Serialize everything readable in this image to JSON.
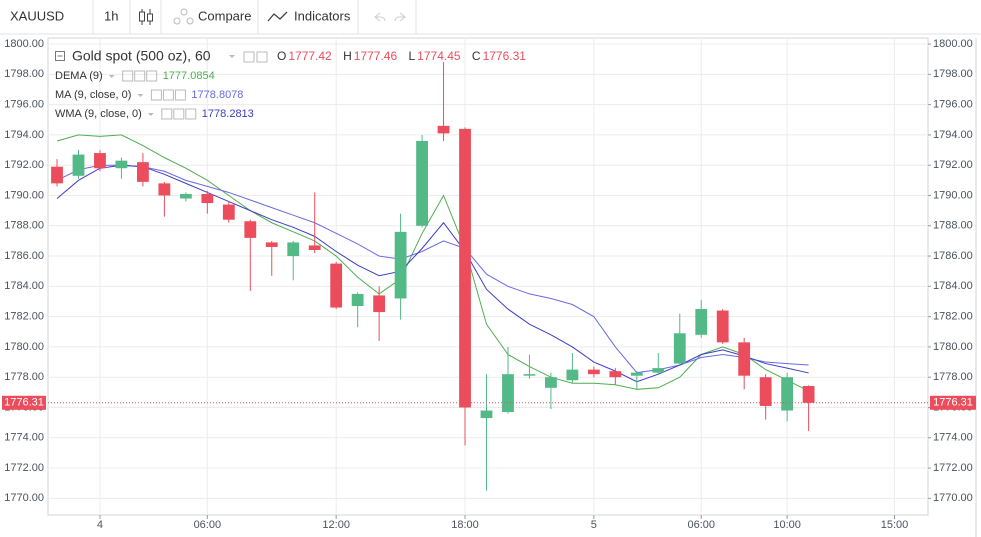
{
  "toolbar": {
    "symbol": "XAUUSD",
    "interval": "1h",
    "compare": "Compare",
    "indicators": "Indicators"
  },
  "chart_data": {
    "type": "candlestick",
    "title": "Gold spot (500 oz), 60",
    "ohlc_labels": {
      "open": "O",
      "high": "H",
      "low": "L",
      "close": "C"
    },
    "x": [
      0,
      1,
      2,
      3,
      4,
      5,
      6,
      7,
      8,
      9,
      10,
      11,
      12,
      13,
      14,
      15,
      16,
      17,
      18,
      19,
      20,
      21,
      22,
      23,
      24,
      25,
      26,
      27,
      28,
      29,
      30,
      31,
      32,
      33,
      34,
      35
    ],
    "xlim": [
      -0.42,
      40.56
    ],
    "xticks": [
      {
        "value": 2,
        "label": "4"
      },
      {
        "value": 7,
        "label": "06:00"
      },
      {
        "value": 13,
        "label": "12:00"
      },
      {
        "value": 19,
        "label": "18:00"
      },
      {
        "value": 25,
        "label": "5"
      },
      {
        "value": 30,
        "label": "06:00"
      },
      {
        "value": 34,
        "label": "10:00"
      },
      {
        "value": 39,
        "label": "15:00"
      }
    ],
    "ylim": [
      1768.9,
      1800.4
    ],
    "yticks": [
      {
        "value": 1770,
        "label": "1770.00"
      },
      {
        "value": 1772,
        "label": "1772.00"
      },
      {
        "value": 1774,
        "label": "1774.00"
      },
      {
        "value": 1776,
        "label": "1776.00"
      },
      {
        "value": 1778,
        "label": "1778.00"
      },
      {
        "value": 1780,
        "label": "1780.00"
      },
      {
        "value": 1782,
        "label": "1782.00"
      },
      {
        "value": 1784,
        "label": "1784.00"
      },
      {
        "value": 1786,
        "label": "1786.00"
      },
      {
        "value": 1788,
        "label": "1788.00"
      },
      {
        "value": 1790,
        "label": "1790.00"
      },
      {
        "value": 1792,
        "label": "1792.00"
      },
      {
        "value": 1794,
        "label": "1794.00"
      },
      {
        "value": 1796,
        "label": "1796.00"
      },
      {
        "value": 1798,
        "label": "1798.00"
      },
      {
        "value": 1800,
        "label": "1800.00"
      }
    ],
    "grid": true,
    "up_color": "#53b987",
    "down_color": "#eb4d5c",
    "open": [
      1791.9,
      1791.3,
      1792.8,
      1791.8,
      1792.2,
      1790.8,
      1789.8,
      1790.1,
      1789.4,
      1788.3,
      1786.9,
      1786.0,
      1786.7,
      1785.5,
      1782.7,
      1783.4,
      1783.2,
      1788.0,
      1794.6,
      1794.4,
      1775.3,
      1775.7,
      1778.1,
      1777.3,
      1777.8,
      1778.5,
      1778.4,
      1778.1,
      1778.3,
      1778.9,
      1780.8,
      1782.4,
      1780.3,
      1778.0,
      1775.8,
      1777.42
    ],
    "high": [
      1792.4,
      1793.0,
      1793.0,
      1792.5,
      1792.8,
      1790.9,
      1790.2,
      1790.3,
      1789.6,
      1788.4,
      1787.0,
      1787.0,
      1790.2,
      1785.6,
      1783.6,
      1784.0,
      1788.8,
      1794.0,
      1798.8,
      1794.5,
      1778.2,
      1780.0,
      1779.5,
      1778.3,
      1779.6,
      1778.7,
      1778.6,
      1778.4,
      1779.6,
      1782.2,
      1783.1,
      1782.5,
      1780.6,
      1778.2,
      1778.3,
      1777.46
    ],
    "low": [
      1790.6,
      1791.1,
      1791.6,
      1791.1,
      1790.6,
      1788.6,
      1789.6,
      1788.8,
      1788.2,
      1783.7,
      1784.7,
      1784.4,
      1786.2,
      1782.5,
      1781.3,
      1780.4,
      1781.8,
      1787.9,
      1793.6,
      1773.5,
      1770.5,
      1775.6,
      1777.9,
      1775.9,
      1777.6,
      1778.0,
      1777.5,
      1777.2,
      1778.2,
      1778.8,
      1780.6,
      1780.2,
      1777.2,
      1775.2,
      1775.1,
      1774.45
    ],
    "close": [
      1790.8,
      1792.7,
      1791.8,
      1792.3,
      1790.9,
      1790.0,
      1790.1,
      1789.5,
      1788.4,
      1787.2,
      1786.6,
      1786.9,
      1786.4,
      1782.6,
      1783.5,
      1782.3,
      1787.6,
      1793.6,
      1794.1,
      1776.0,
      1775.8,
      1778.2,
      1778.2,
      1778.0,
      1778.5,
      1778.2,
      1778.0,
      1778.3,
      1778.6,
      1780.9,
      1782.5,
      1780.3,
      1778.1,
      1776.1,
      1778.0,
      1776.31
    ],
    "series": [
      {
        "name": "DEMA (9)",
        "color": "#4fae4f",
        "values": [
          1793.6,
          1794.0,
          1793.9,
          1794.0,
          1793.3,
          1792.5,
          1791.8,
          1791.0,
          1790.0,
          1789.0,
          1788.2,
          1787.6,
          1787.0,
          1786.0,
          1784.6,
          1783.5,
          1784.5,
          1787.5,
          1790.0,
          1786.5,
          1781.5,
          1779.5,
          1778.7,
          1778.0,
          1777.6,
          1777.6,
          1777.5,
          1777.2,
          1777.3,
          1778.0,
          1779.5,
          1780.0,
          1779.5,
          1778.5,
          1777.8,
          1777.0854
        ]
      },
      {
        "name": "MA (9, close, 0)",
        "color": "#6a6ae0",
        "values": [
          1791.0,
          1791.7,
          1792.0,
          1792.0,
          1791.9,
          1791.6,
          1791.0,
          1790.6,
          1790.2,
          1789.7,
          1789.2,
          1788.7,
          1788.2,
          1787.5,
          1786.8,
          1786.0,
          1785.8,
          1786.3,
          1787.0,
          1786.5,
          1784.8,
          1784.0,
          1783.5,
          1783.2,
          1782.8,
          1782.0,
          1780.0,
          1778.3,
          1778.5,
          1778.8,
          1779.3,
          1779.5,
          1779.3,
          1779.0,
          1778.9,
          1778.8078
        ]
      },
      {
        "name": "WMA (9, close, 0)",
        "color": "#3c3cc8",
        "values": [
          1789.8,
          1791.0,
          1791.8,
          1792.0,
          1791.9,
          1791.4,
          1790.8,
          1790.2,
          1789.6,
          1789.0,
          1788.4,
          1787.9,
          1787.3,
          1786.3,
          1785.4,
          1784.7,
          1785.0,
          1786.5,
          1788.2,
          1786.3,
          1783.8,
          1782.5,
          1781.5,
          1780.8,
          1780.0,
          1779.0,
          1778.4,
          1777.7,
          1778.2,
          1778.8,
          1779.5,
          1779.8,
          1779.4,
          1778.9,
          1778.6,
          1778.2813
        ]
      }
    ]
  }
}
